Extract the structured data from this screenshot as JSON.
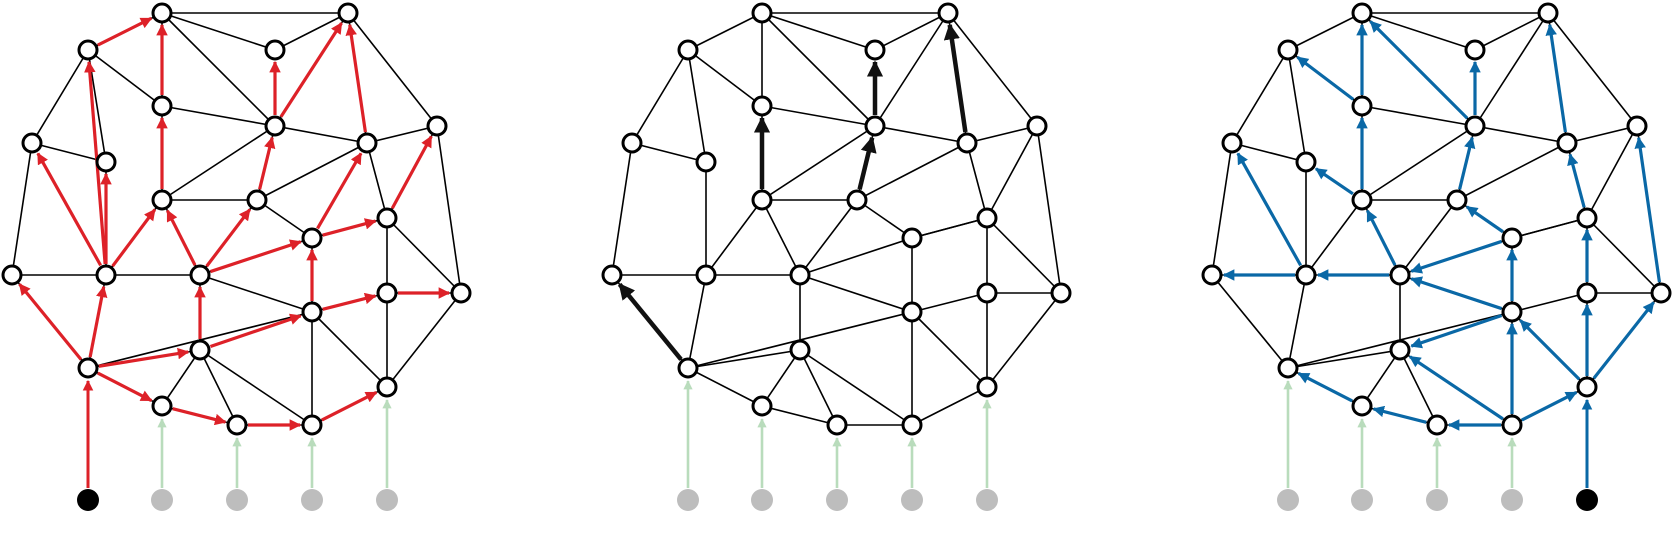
{
  "colors": {
    "background": "#ffffff",
    "mesh_edge": "#000000",
    "node_fill": "#ffffff",
    "node_stroke": "#000000",
    "source_active": "#000000",
    "source_inactive": "#bdbdbd",
    "feeder_inactive": "#b9dcbc"
  },
  "panels": [
    {
      "id": "left",
      "arrow_color": "#dd2128",
      "arrow_style": "colored",
      "active_source": 0
    },
    {
      "id": "middle",
      "arrow_color": "#111111",
      "arrow_style": "thick",
      "active_source": -1
    },
    {
      "id": "right",
      "arrow_color": "#0a68a6",
      "arrow_style": "colored",
      "active_source": 4
    }
  ]
}
